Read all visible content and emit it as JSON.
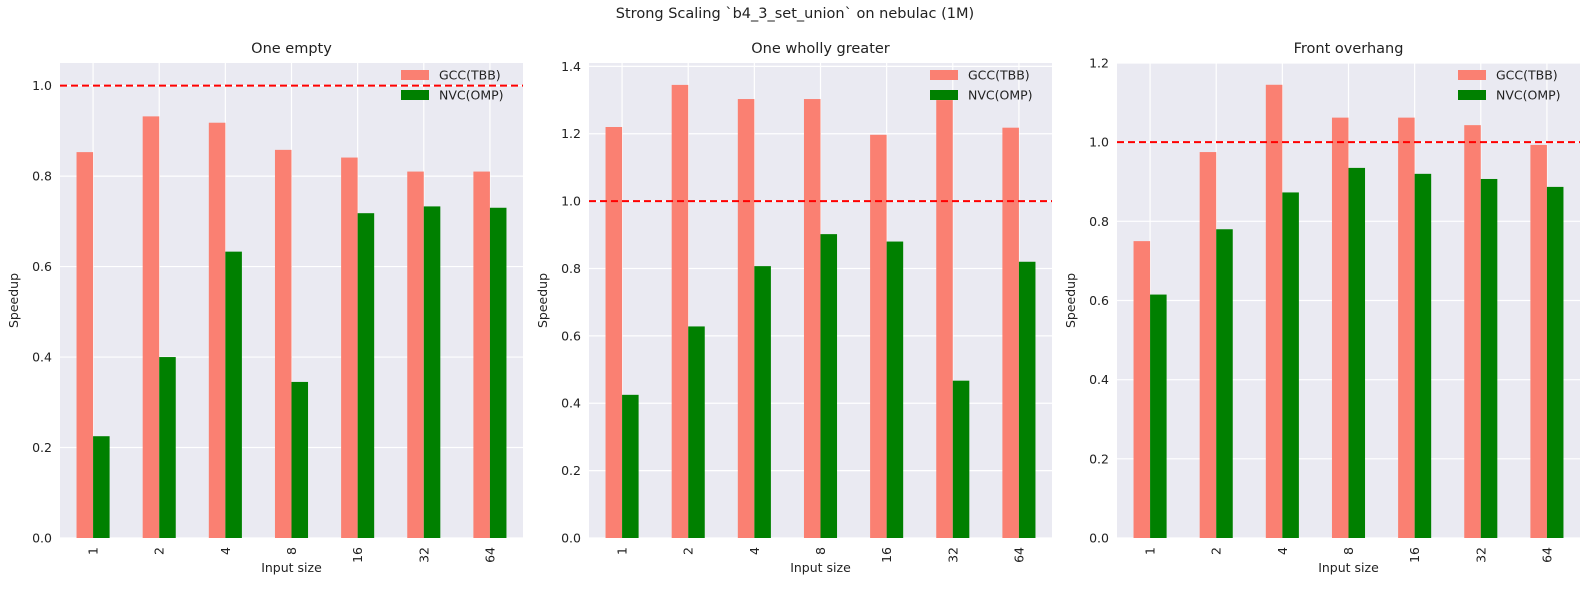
{
  "suptitle": "Strong Scaling `b4_3_set_union` on nebulac (1M)",
  "colors": {
    "gcc": "#fa8072",
    "nvc": "#008000",
    "reference_line": "#ff0000",
    "axes_bg": "#eaeaf2",
    "grid": "#ffffff"
  },
  "chart_data": [
    {
      "type": "bar",
      "title": "One empty",
      "xlabel": "Input size",
      "ylabel": "Speedup",
      "categories": [
        "1",
        "2",
        "4",
        "8",
        "16",
        "32",
        "64"
      ],
      "series": [
        {
          "name": "GCC(TBB)",
          "values": [
            0.853,
            0.932,
            0.918,
            0.858,
            0.841,
            0.81,
            0.81
          ]
        },
        {
          "name": "NVC(OMP)",
          "values": [
            0.225,
            0.4,
            0.633,
            0.345,
            0.718,
            0.733,
            0.73
          ]
        }
      ],
      "ylim": [
        0,
        1.05
      ],
      "yticks": [
        0.0,
        0.2,
        0.4,
        0.6,
        0.8,
        1.0
      ],
      "ytick_labels": [
        "0.0",
        "0.2",
        "0.4",
        "0.6",
        "0.8",
        "1.0"
      ],
      "reference_line": 1.0,
      "legend_position": "top-right",
      "grid": true
    },
    {
      "type": "bar",
      "title": "One wholly greater",
      "xlabel": "Input size",
      "ylabel": "Speedup",
      "categories": [
        "1",
        "2",
        "4",
        "8",
        "16",
        "32",
        "64"
      ],
      "series": [
        {
          "name": "GCC(TBB)",
          "values": [
            1.22,
            1.345,
            1.303,
            1.303,
            1.197,
            1.3,
            1.218
          ]
        },
        {
          "name": "NVC(OMP)",
          "values": [
            0.425,
            0.628,
            0.807,
            0.902,
            0.88,
            0.467,
            0.82
          ]
        }
      ],
      "ylim": [
        0,
        1.41
      ],
      "yticks": [
        0.0,
        0.2,
        0.4,
        0.6,
        0.8,
        1.0,
        1.2,
        1.4
      ],
      "ytick_labels": [
        "0.0",
        "0.2",
        "0.4",
        "0.6",
        "0.8",
        "1.0",
        "1.2",
        "1.4"
      ],
      "reference_line": 1.0,
      "legend_position": "top-right",
      "grid": true
    },
    {
      "type": "bar",
      "title": "Front overhang",
      "xlabel": "Input size",
      "ylabel": "Speedup",
      "categories": [
        "1",
        "2",
        "4",
        "8",
        "16",
        "32",
        "64"
      ],
      "series": [
        {
          "name": "GCC(TBB)",
          "values": [
            0.75,
            0.975,
            1.145,
            1.062,
            1.062,
            1.043,
            0.993
          ]
        },
        {
          "name": "NVC(OMP)",
          "values": [
            0.615,
            0.78,
            0.873,
            0.935,
            0.92,
            0.907,
            0.887
          ]
        }
      ],
      "ylim": [
        0,
        1.2
      ],
      "yticks": [
        0.0,
        0.2,
        0.4,
        0.6,
        0.8,
        1.0,
        1.2
      ],
      "ytick_labels": [
        "0.0",
        "0.2",
        "0.4",
        "0.6",
        "0.8",
        "1.0",
        "1.2"
      ],
      "reference_line": 1.0,
      "legend_position": "top-right",
      "grid": true
    }
  ]
}
